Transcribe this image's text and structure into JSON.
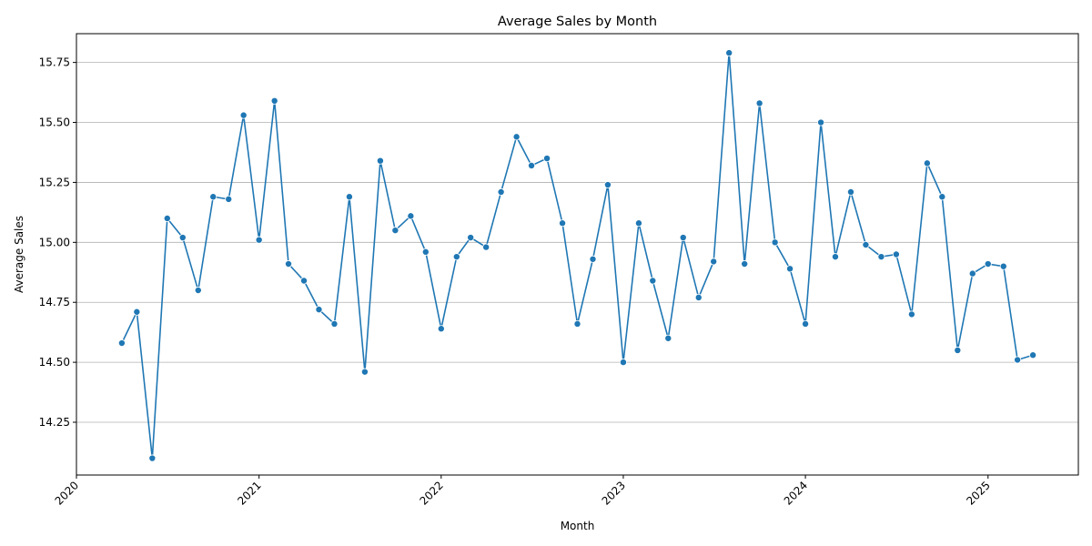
{
  "chart_data": {
    "type": "line",
    "title": "Average Sales by Month",
    "xlabel": "Month",
    "ylabel": "Average Sales",
    "x_ticks": [
      "2020",
      "2021",
      "2022",
      "2023",
      "2024",
      "2025"
    ],
    "y_ticks": [
      "14.25",
      "14.50",
      "14.75",
      "15.00",
      "15.25",
      "15.50",
      "15.75"
    ],
    "xlim": [
      "2020-01-01",
      "2025-07-01"
    ],
    "ylim": [
      14.03,
      15.87
    ],
    "grid": "horizontal",
    "line_color": "#1f77b4",
    "marker": "circle",
    "series": [
      {
        "x": [
          "2020-04",
          "2020-05",
          "2020-06",
          "2020-07",
          "2020-08",
          "2020-09",
          "2020-10",
          "2020-11",
          "2020-12",
          "2021-01",
          "2021-02",
          "2021-03",
          "2021-04",
          "2021-05",
          "2021-06",
          "2021-07",
          "2021-08",
          "2021-09",
          "2021-10",
          "2021-11",
          "2021-12",
          "2022-01",
          "2022-02",
          "2022-03",
          "2022-04",
          "2022-05",
          "2022-06",
          "2022-07",
          "2022-08",
          "2022-09",
          "2022-10",
          "2022-11",
          "2022-12",
          "2023-01",
          "2023-02",
          "2023-03",
          "2023-04",
          "2023-05",
          "2023-06",
          "2023-07",
          "2023-08",
          "2023-09",
          "2023-10",
          "2023-11",
          "2023-12",
          "2024-01",
          "2024-02",
          "2024-03",
          "2024-04",
          "2024-05",
          "2024-06",
          "2024-07",
          "2024-08",
          "2024-09",
          "2024-10",
          "2024-11",
          "2024-12",
          "2025-01",
          "2025-02",
          "2025-03",
          "2025-04"
        ],
        "values": [
          14.58,
          14.71,
          14.1,
          15.1,
          15.02,
          14.8,
          15.19,
          15.18,
          15.53,
          15.01,
          15.59,
          14.91,
          14.84,
          14.72,
          14.66,
          15.19,
          14.46,
          15.34,
          15.05,
          15.11,
          14.96,
          14.64,
          14.94,
          15.02,
          14.98,
          15.21,
          15.44,
          15.32,
          15.35,
          15.08,
          14.66,
          14.93,
          15.24,
          14.5,
          15.08,
          14.84,
          14.6,
          15.02,
          14.77,
          14.92,
          15.79,
          14.91,
          15.58,
          15.0,
          14.89,
          14.66,
          15.5,
          14.94,
          15.21,
          14.99,
          14.94,
          14.95,
          14.7,
          15.33,
          15.19,
          14.55,
          14.87,
          14.91,
          14.9,
          14.51,
          14.53
        ]
      }
    ]
  }
}
